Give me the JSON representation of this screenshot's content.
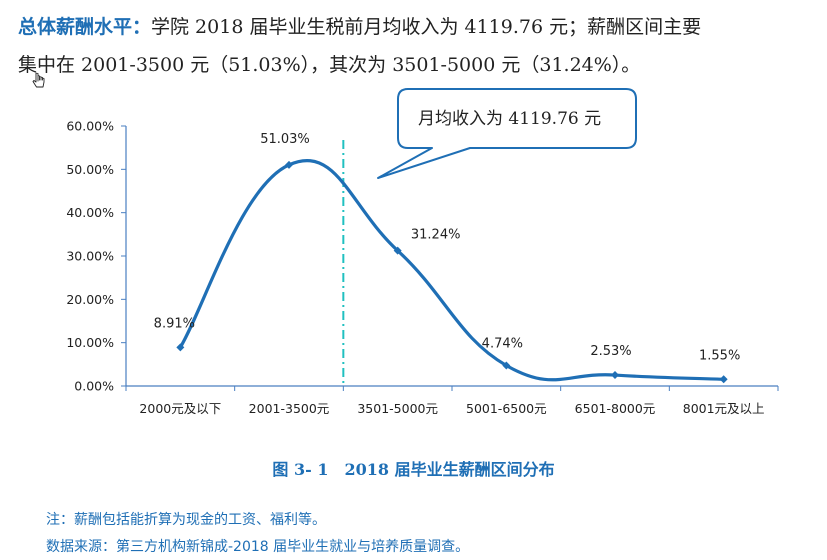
{
  "paragraph": {
    "lead": "总体薪酬水平：",
    "line1_rest": "学院 2018 届毕业生税前月均收入为 4119.76 元；薪酬区间主要",
    "line2": "集中在 2001-3500 元（51.03%），其次为 3501-5000 元（31.24%）。"
  },
  "chart_data": {
    "type": "line",
    "smooth": true,
    "categories": [
      "2000元及以下",
      "2001-3500元",
      "3501-5000元",
      "5001-6500元",
      "6501-8000元",
      "8001元及以上"
    ],
    "values": [
      8.91,
      51.03,
      31.24,
      4.74,
      2.53,
      1.55
    ],
    "value_labels": [
      "8.91%",
      "51.03%",
      "31.24%",
      "4.74%",
      "2.53%",
      "1.55%"
    ],
    "ylim": [
      0,
      60
    ],
    "yticks": [
      0,
      10,
      20,
      30,
      40,
      50,
      60
    ],
    "ytick_labels": [
      "0.00%",
      "10.00%",
      "20.00%",
      "30.00%",
      "40.00%",
      "50.00%",
      "60.00%"
    ],
    "grid": false,
    "line_color": "#1f6fb5",
    "reference_line": {
      "category_position": 2,
      "color": "#20c0c0",
      "style": "dash-dot"
    },
    "callout_text": "月均收入为 4119.76 元"
  },
  "caption": "图 3- 1　2018 届毕业生薪酬区间分布",
  "notes": {
    "note1": "注：薪酬包括能折算为现金的工资、福利等。",
    "note2": "数据来源：第三方机构新锦成-2018 届毕业生就业与培养质量调查。"
  }
}
